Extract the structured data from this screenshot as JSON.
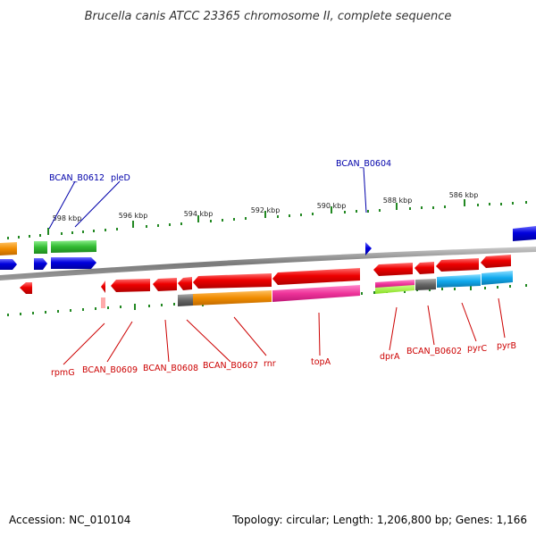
{
  "title": "Brucella canis ATCC 23365 chromosome II, complete sequence",
  "footer": {
    "accession": "Accession: NC_010104",
    "summary": "Topology: circular; Length: 1,206,800 bp; Genes: 1,166"
  },
  "scale_labels": [
    "598 kbp",
    "596 kbp",
    "594 kbp",
    "592 kbp",
    "590 kbp",
    "588 kbp",
    "586 kbp"
  ],
  "top_labels": [
    "BCAN_B0612",
    "pleD",
    "BCAN_B0604"
  ],
  "bottom_labels": [
    "rpmG",
    "BCAN_B0609",
    "BCAN_B0608",
    "BCAN_B0607",
    "rnr",
    "topA",
    "dprA",
    "BCAN_B0602",
    "pyrC",
    "pyrB"
  ],
  "colors": {
    "forward_gene": "#0000dd",
    "reverse_gene": "#ee0000",
    "cog_orange": "#f08c00",
    "cog_magenta": "#ee3399",
    "cog_green": "#33bb33",
    "cog_cyan": "#11aaee",
    "cog_grey": "#666666",
    "cog_lime": "#99ee33",
    "backbone": "#888888",
    "tick": "#228822"
  }
}
